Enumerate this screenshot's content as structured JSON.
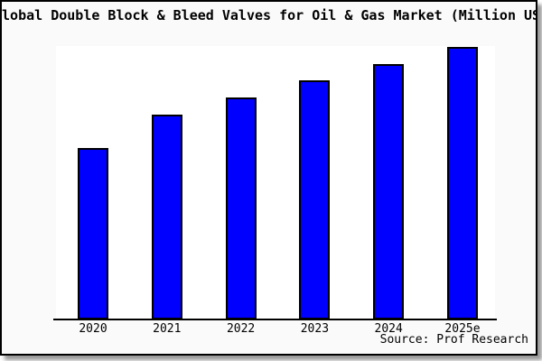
{
  "title": "Global Double Block & Bleed Valves for Oil & Gas Market (Million USD)",
  "source_note": "Source: Prof Research",
  "colors": {
    "bar_fill": "#0000ff",
    "bar_border": "#000000",
    "plot_background": "#ffffff",
    "canvas_background": "#fafafa",
    "axis": "#000000",
    "shadow": "#999999"
  },
  "chart_data": {
    "type": "bar",
    "title": "Global Double Block & Bleed Valves for Oil & Gas Market (Million USD)",
    "categories": [
      "2020",
      "2021",
      "2022",
      "2023",
      "2024",
      "2025e"
    ],
    "values": [
      62.9,
      75.2,
      81.5,
      87.7,
      93.7,
      100
    ],
    "value_note": "y-axis has no tick labels; values are relative bar heights with 2025e = 100",
    "xlabel": "",
    "ylabel": "",
    "ylim": [
      0,
      100
    ],
    "grid": false,
    "legend": null,
    "annotations": [
      "Source: Prof Research"
    ]
  }
}
